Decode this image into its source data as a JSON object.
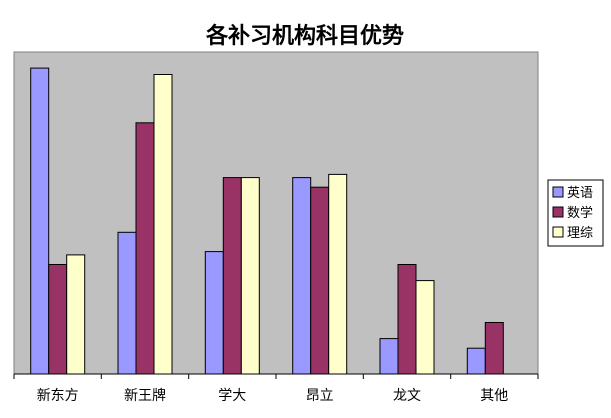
{
  "chart_data": {
    "type": "bar",
    "title": "各补习机构科目优势",
    "xlabel": "",
    "ylabel": "",
    "ylim": [
      0,
      100
    ],
    "grid": false,
    "legend_position": "right",
    "categories": [
      "新东方",
      "新王牌",
      "学大",
      "昂立",
      "龙文",
      "其他"
    ],
    "series": [
      {
        "name": "英语",
        "color": "#9999ff",
        "values": [
          95,
          44,
          38,
          61,
          11,
          8
        ]
      },
      {
        "name": "数学",
        "color": "#993366",
        "values": [
          34,
          78,
          61,
          58,
          34,
          16
        ]
      },
      {
        "name": "理综",
        "color": "#ffffcc",
        "values": [
          37,
          93,
          61,
          62,
          29,
          0
        ]
      }
    ],
    "plot_background": "#c0c0c0"
  }
}
